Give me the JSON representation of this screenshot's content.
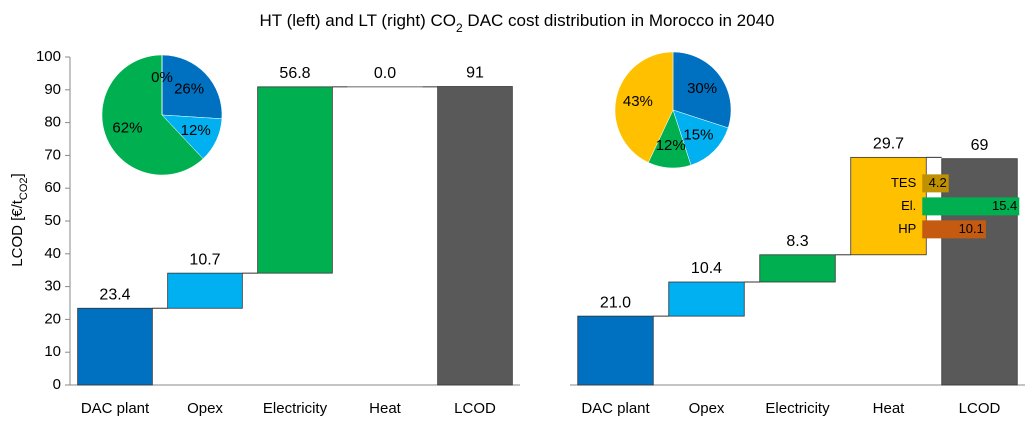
{
  "title": [
    "HT (left) and LT (right) CO",
    "2",
    " DAC cost distribution in Morocco in 2040"
  ],
  "chart_data": [
    {
      "type": "waterfall",
      "y_label": [
        "LCOD [€/t",
        "CO2",
        "]"
      ],
      "categories": [
        "DAC plant",
        "Opex",
        "Electricity",
        "Heat",
        "LCOD"
      ],
      "values": [
        23.4,
        10.7,
        56.8,
        0.0,
        91
      ],
      "value_labels": [
        "23.4",
        "10.7",
        "56.8",
        "0.0",
        "91"
      ],
      "colors": [
        "#0070c0",
        "#00b0f0",
        "#00b050",
        "#ffc000",
        "#595959"
      ],
      "last_is_total": true,
      "ylim": [
        0,
        100
      ],
      "yticks": [
        0,
        10,
        20,
        30,
        40,
        50,
        60,
        70,
        80,
        90,
        100
      ]
    },
    {
      "type": "pie",
      "values": [
        26,
        12,
        62,
        0
      ],
      "value_labels": [
        "26%",
        "12%",
        "62%",
        "0%"
      ],
      "colors": [
        "#0070c0",
        "#00b0f0",
        "#00b050",
        "#ffc000"
      ]
    },
    {
      "type": "waterfall",
      "categories": [
        "DAC plant",
        "Opex",
        "Electricity",
        "Heat",
        "LCOD"
      ],
      "values": [
        21.0,
        10.4,
        8.3,
        29.7,
        69
      ],
      "value_labels": [
        "21.0",
        "10.4",
        "8.3",
        "29.7",
        "69"
      ],
      "colors": [
        "#0070c0",
        "#00b0f0",
        "#00b050",
        "#ffc000",
        "#595959"
      ],
      "last_is_total": true,
      "ylim": [
        0,
        100
      ],
      "breakdown": {
        "categories": [
          "TES",
          "El.",
          "HP"
        ],
        "values": [
          4.2,
          15.4,
          10.1
        ],
        "colors": [
          "#bf9000",
          "#00b050",
          "#c55a11"
        ]
      }
    },
    {
      "type": "pie",
      "values": [
        30,
        15,
        12,
        43
      ],
      "value_labels": [
        "30%",
        "15%",
        "12%",
        "43%"
      ],
      "colors": [
        "#0070c0",
        "#00b0f0",
        "#00b050",
        "#ffc000"
      ]
    }
  ]
}
